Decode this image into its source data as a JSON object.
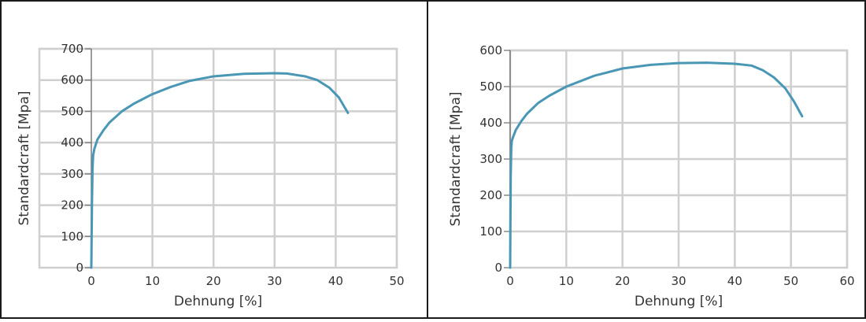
{
  "chart_data": [
    {
      "type": "line",
      "xlabel": "Dehnung [%]",
      "ylabel": "Standardcraft  [Mpa]",
      "xlim": [
        0,
        50
      ],
      "ylim": [
        0,
        700
      ],
      "x_ticks": [
        0,
        10,
        20,
        30,
        40,
        50
      ],
      "y_ticks": [
        0,
        100,
        200,
        300,
        400,
        500,
        600,
        700
      ],
      "grid": true,
      "color": "#4a97b5",
      "series": [
        {
          "x": [
            0,
            0.1,
            0.2,
            0.3,
            0.5,
            1,
            2,
            3,
            5,
            7,
            10,
            13,
            16,
            20,
            25,
            30,
            32,
            35,
            37,
            39,
            40.5,
            42
          ],
          "y": [
            0,
            200,
            320,
            360,
            380,
            410,
            440,
            465,
            500,
            525,
            555,
            578,
            597,
            612,
            620,
            622,
            621,
            612,
            600,
            575,
            545,
            495
          ]
        }
      ]
    },
    {
      "type": "line",
      "xlabel": "Dehnung [%]",
      "ylabel": "Standardcraft  [Mpa]",
      "xlim": [
        0,
        60
      ],
      "ylim": [
        0,
        600
      ],
      "x_ticks": [
        0,
        10,
        20,
        30,
        40,
        50,
        60
      ],
      "y_ticks": [
        0,
        100,
        200,
        300,
        400,
        500,
        600
      ],
      "grid": true,
      "color": "#4a97b5",
      "series": [
        {
          "x": [
            0,
            0.1,
            0.2,
            0.3,
            0.5,
            1,
            2,
            3,
            5,
            7,
            10,
            15,
            20,
            25,
            30,
            35,
            40,
            43,
            45,
            47,
            49,
            50.5,
            52
          ],
          "y": [
            0,
            250,
            330,
            350,
            360,
            380,
            405,
            425,
            455,
            475,
            500,
            530,
            550,
            560,
            565,
            566,
            563,
            558,
            545,
            525,
            495,
            460,
            418
          ]
        }
      ]
    }
  ]
}
